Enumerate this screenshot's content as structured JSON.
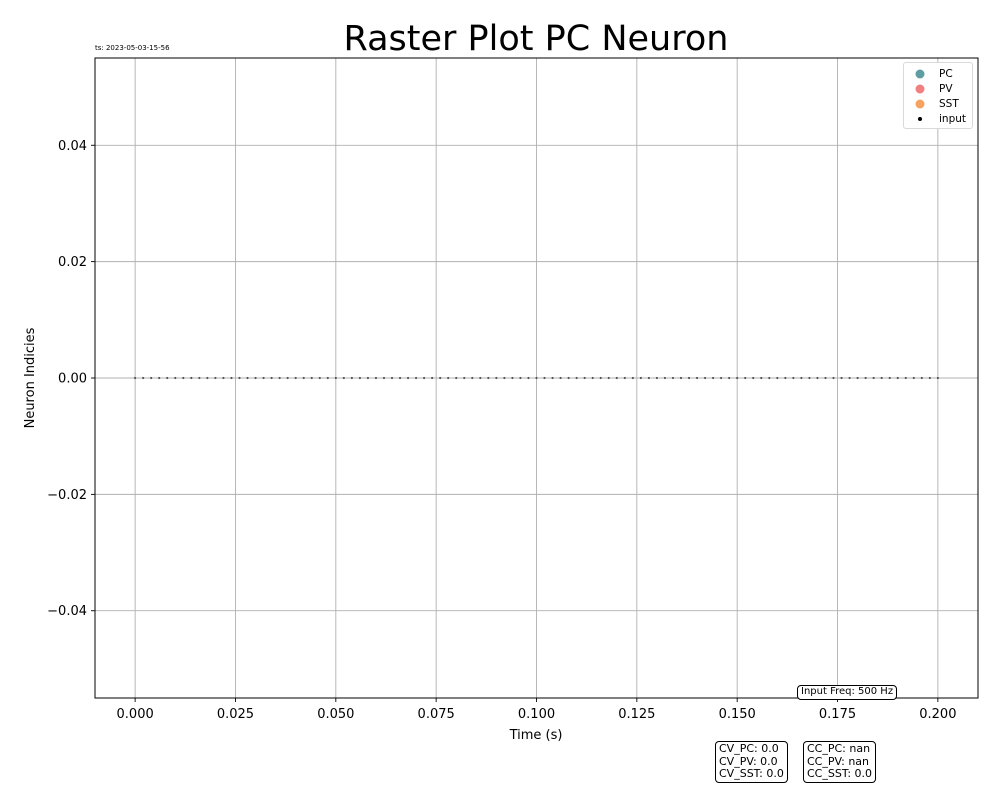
{
  "chart_data": {
    "type": "scatter",
    "title": "Raster Plot PC Neuron",
    "timestamp": "ts: 2023-05-03-15-56",
    "xlabel": "Time (s)",
    "ylabel": "Neuron Indicies",
    "xlim": [
      -0.01,
      0.21
    ],
    "ylim": [
      -0.055,
      0.055
    ],
    "xticks": [
      0.0,
      0.025,
      0.05,
      0.075,
      0.1,
      0.125,
      0.15,
      0.175,
      0.2
    ],
    "xtick_labels": [
      "0.000",
      "0.025",
      "0.050",
      "0.075",
      "0.100",
      "0.125",
      "0.150",
      "0.175",
      "0.200"
    ],
    "yticks": [
      -0.04,
      -0.02,
      0.0,
      0.02,
      0.04
    ],
    "ytick_labels": [
      "−0.04",
      "−0.02",
      "0.00",
      "0.02",
      "0.04"
    ],
    "grid": true,
    "legend_position": "top-right",
    "legend": [
      {
        "label": "PC",
        "color": "#5f9ea0",
        "marker": "circle"
      },
      {
        "label": "PV",
        "color": "#f08080",
        "marker": "circle"
      },
      {
        "label": "SST",
        "color": "#f4a460",
        "marker": "circle"
      },
      {
        "label": "input",
        "color": "#000000",
        "marker": "dot"
      }
    ],
    "series": [
      {
        "name": "input",
        "color": "#555555",
        "spike_interval_s": 0.002,
        "t_start": 0.0,
        "t_end": 0.2,
        "neuron_index": 0
      }
    ],
    "annotations": {
      "input_freq": "Input Freq: 500 Hz",
      "cv_lines": [
        "CV_PC: 0.0",
        "CV_PV: 0.0",
        "CV_SST: 0.0"
      ],
      "cc_lines": [
        "CC_PC: nan",
        "CC_PV: nan",
        "CC_SST: 0.0"
      ]
    }
  }
}
